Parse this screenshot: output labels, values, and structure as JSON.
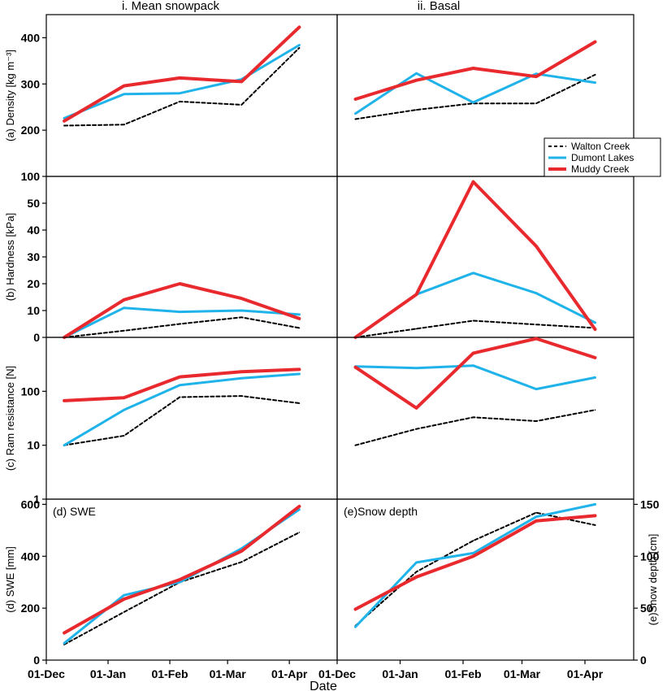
{
  "figure": {
    "column_titles": [
      "i. Mean snowpack",
      "ii. Basal"
    ],
    "xlabel": "Date",
    "x_ticks": [
      "01-Dec",
      "01-Jan",
      "01-Feb",
      "01-Mar",
      "01-Apr"
    ],
    "colors": {
      "walton": "#000000",
      "dumont": "#1fb3ea",
      "muddy": "#e8292d"
    }
  },
  "chart_data": [
    {
      "type": "line",
      "panel": "a-i",
      "ylabel": "(a) Density [kg m⁻³]",
      "ylim": [
        100,
        450
      ],
      "y_ticks": [
        {
          "v": 100,
          "t": "100"
        },
        {
          "v": 200,
          "t": "200"
        },
        {
          "v": 300,
          "t": "300"
        },
        {
          "v": 400,
          "t": "400"
        }
      ],
      "x": [
        "2015-12-10",
        "2016-01-09",
        "2016-02-06",
        "2016-03-08",
        "2016-04-06"
      ],
      "series": [
        {
          "name": "Walton Creek",
          "values": [
            210,
            212,
            262,
            255,
            378
          ]
        },
        {
          "name": "Dumont Lakes",
          "values": [
            226,
            278,
            280,
            310,
            384
          ]
        },
        {
          "name": "Muddy Creek",
          "values": [
            220,
            296,
            313,
            305,
            423
          ]
        }
      ]
    },
    {
      "type": "line",
      "panel": "a-ii",
      "ylabel": "",
      "ylim": [
        100,
        450
      ],
      "y_ticks": [],
      "x": [
        "2015-12-10",
        "2016-01-09",
        "2016-02-06",
        "2016-03-08",
        "2016-04-06"
      ],
      "series": [
        {
          "name": "Walton Creek",
          "values": [
            224,
            244,
            258,
            258,
            320
          ]
        },
        {
          "name": "Dumont Lakes",
          "values": [
            236,
            323,
            260,
            322,
            303
          ]
        },
        {
          "name": "Muddy Creek",
          "values": [
            267,
            308,
            334,
            316,
            391
          ]
        }
      ],
      "legend": {
        "position": "right",
        "entries": [
          "Walton Creek",
          "Dumont Lakes",
          "Muddy Creek"
        ]
      }
    },
    {
      "type": "line",
      "panel": "b-i",
      "ylabel": "(b) Hardness [kPa]",
      "ylim": [
        0,
        60
      ],
      "y_ticks": [
        {
          "v": 0,
          "t": "0"
        },
        {
          "v": 10,
          "t": "10"
        },
        {
          "v": 20,
          "t": "20"
        },
        {
          "v": 30,
          "t": "30"
        },
        {
          "v": 40,
          "t": "40"
        },
        {
          "v": 50,
          "t": "50"
        }
      ],
      "x": [
        "2015-12-10",
        "2016-01-09",
        "2016-02-06",
        "2016-03-08",
        "2016-04-06"
      ],
      "series": [
        {
          "name": "Walton Creek",
          "values": [
            0,
            2.5,
            5,
            7.5,
            3.5
          ]
        },
        {
          "name": "Dumont Lakes",
          "values": [
            0,
            11,
            9.5,
            10,
            8.5
          ]
        },
        {
          "name": "Muddy Creek",
          "values": [
            0,
            14,
            20,
            14.5,
            7
          ]
        }
      ]
    },
    {
      "type": "line",
      "panel": "b-ii",
      "ylabel": "",
      "ylim": [
        0,
        60
      ],
      "y_ticks": [],
      "x": [
        "2015-12-10",
        "2016-01-09",
        "2016-02-06",
        "2016-03-08",
        "2016-04-06"
      ],
      "series": [
        {
          "name": "Walton Creek",
          "values": [
            0,
            3.2,
            6.2,
            4.8,
            3.5
          ]
        },
        {
          "name": "Dumont Lakes",
          "values": [
            0,
            16,
            24,
            16.5,
            5.5
          ]
        },
        {
          "name": "Muddy Creek",
          "values": [
            0,
            16,
            58,
            34,
            3
          ]
        }
      ]
    },
    {
      "type": "line",
      "panel": "c-i",
      "ylabel": "(c) Ram resistance [N]",
      "yscale": "log",
      "ylim": [
        1,
        1000
      ],
      "y_ticks": [
        {
          "v": 1,
          "t": "1"
        },
        {
          "v": 10,
          "t": "10"
        },
        {
          "v": 100,
          "t": "100"
        }
      ],
      "x": [
        "2015-12-10",
        "2016-01-09",
        "2016-02-06",
        "2016-03-08",
        "2016-04-06"
      ],
      "series": [
        {
          "name": "Walton Creek",
          "values": [
            10,
            15,
            78,
            82,
            60
          ]
        },
        {
          "name": "Dumont Lakes",
          "values": [
            10,
            45,
            130,
            175,
            210
          ]
        },
        {
          "name": "Muddy Creek",
          "values": [
            67,
            76,
            185,
            230,
            255
          ]
        }
      ]
    },
    {
      "type": "line",
      "panel": "c-ii",
      "ylabel": "",
      "yscale": "log",
      "ylim": [
        1,
        1000
      ],
      "y_ticks": [],
      "x": [
        "2015-12-10",
        "2016-01-09",
        "2016-02-06",
        "2016-03-08",
        "2016-04-06"
      ],
      "series": [
        {
          "name": "Walton Creek",
          "values": [
            10,
            20,
            33,
            28,
            45
          ]
        },
        {
          "name": "Dumont Lakes",
          "values": [
            290,
            270,
            300,
            110,
            180
          ]
        },
        {
          "name": "Muddy Creek",
          "values": [
            280,
            49,
            510,
            950,
            420
          ]
        }
      ]
    },
    {
      "type": "line",
      "panel": "d",
      "title": "(d) SWE",
      "ylabel": "(d) SWE [mm]",
      "ylim": [
        0,
        620
      ],
      "y_ticks": [
        {
          "v": 0,
          "t": "0"
        },
        {
          "v": 200,
          "t": "200"
        },
        {
          "v": 400,
          "t": "400"
        },
        {
          "v": 600,
          "t": "600"
        }
      ],
      "x": [
        "2015-12-10",
        "2016-01-09",
        "2016-02-06",
        "2016-03-08",
        "2016-04-06"
      ],
      "series": [
        {
          "name": "Walton Creek",
          "values": [
            60,
            185,
            300,
            378,
            492
          ]
        },
        {
          "name": "Dumont Lakes",
          "values": [
            65,
            250,
            300,
            430,
            580
          ]
        },
        {
          "name": "Muddy Creek",
          "values": [
            105,
            235,
            310,
            420,
            592
          ]
        }
      ]
    },
    {
      "type": "line",
      "panel": "e",
      "title": "(e)Snow depth",
      "ylabel": "(e)Snow depth [cm]",
      "yaxis_side": "right",
      "ylim": [
        0,
        155
      ],
      "y_ticks": [
        {
          "v": 0,
          "t": "0"
        },
        {
          "v": 50,
          "t": "50"
        },
        {
          "v": 100,
          "t": "100"
        },
        {
          "v": 150,
          "t": "150"
        }
      ],
      "x": [
        "2015-12-10",
        "2016-01-09",
        "2016-02-06",
        "2016-03-08",
        "2016-04-06"
      ],
      "series": [
        {
          "name": "Walton Creek",
          "values": [
            33,
            85,
            115,
            142,
            130
          ]
        },
        {
          "name": "Dumont Lakes",
          "values": [
            32,
            94,
            103,
            138,
            150
          ]
        },
        {
          "name": "Muddy Creek",
          "values": [
            49,
            80,
            100,
            134,
            139
          ]
        }
      ]
    }
  ]
}
